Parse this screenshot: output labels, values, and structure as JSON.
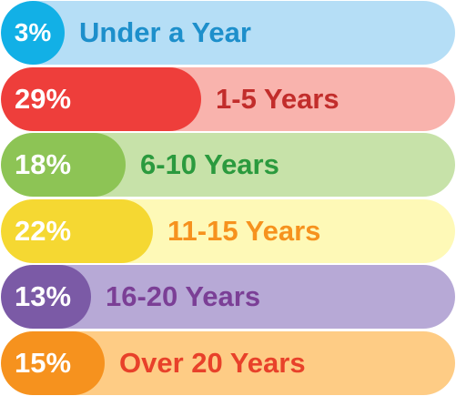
{
  "chart_data": {
    "type": "bar",
    "orientation": "horizontal",
    "categories": [
      "Under a Year",
      "1-5 Years",
      "6-10 Years",
      "11-15 Years",
      "16-20 Years",
      "Over 20 Years"
    ],
    "values": [
      3,
      29,
      18,
      22,
      13,
      15
    ],
    "value_labels": [
      "3%",
      "29%",
      "18%",
      "22%",
      "13%",
      "15%"
    ],
    "unit": "%",
    "title": "",
    "xlabel": "",
    "ylabel": "",
    "grid": false,
    "legend": "none",
    "colors": {
      "fill": [
        "#12b0e6",
        "#ee3e3b",
        "#8dc455",
        "#f5d832",
        "#7b5aa6",
        "#f6921e"
      ],
      "track": [
        "#b5def6",
        "#f9b3ad",
        "#c7e2a9",
        "#fef9b7",
        "#b7a9d6",
        "#fecc85"
      ],
      "label_text": [
        "#1d8fcb",
        "#c22d2b",
        "#2b9a3e",
        "#f6921e",
        "#7b3f96",
        "#e8412a"
      ]
    }
  }
}
